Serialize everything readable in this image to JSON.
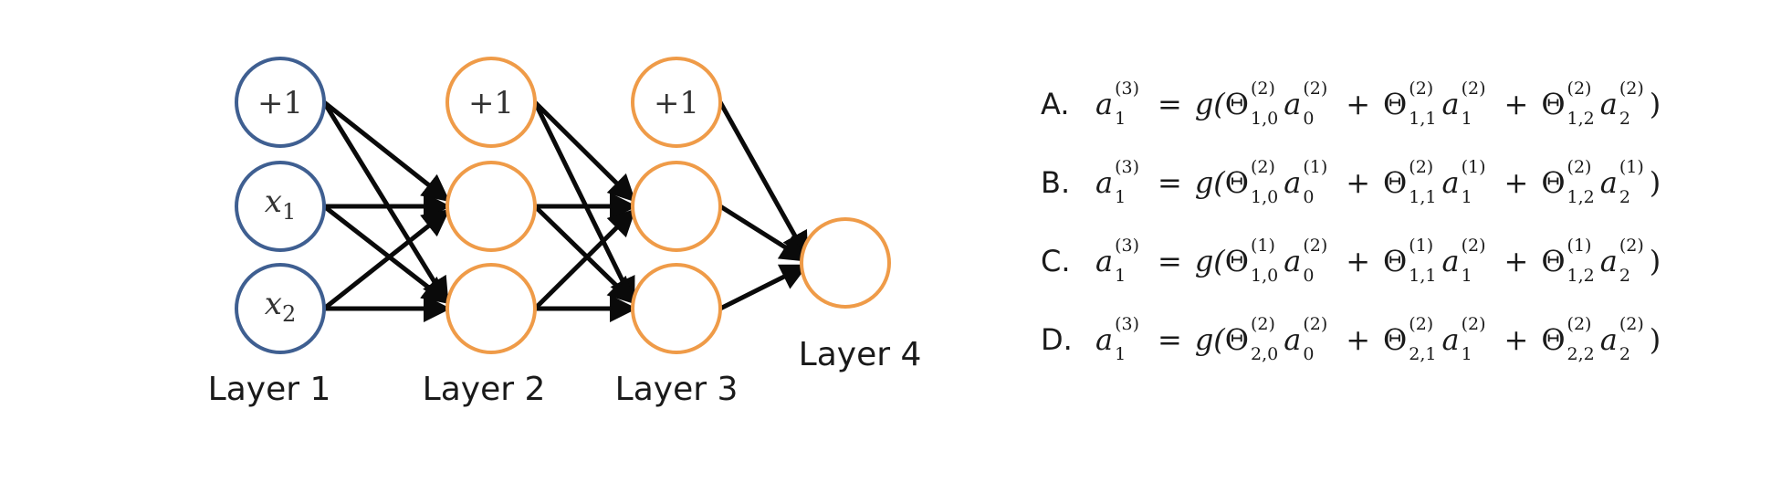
{
  "network": {
    "layers": [
      {
        "label": "Layer 1",
        "nodes": [
          "+1",
          "x1",
          "x2"
        ]
      },
      {
        "label": "Layer 2",
        "nodes": [
          "+1",
          "",
          ""
        ]
      },
      {
        "label": "Layer 3",
        "nodes": [
          "+1",
          "",
          ""
        ]
      },
      {
        "label": "Layer 4",
        "nodes": [
          ""
        ]
      }
    ],
    "colors": {
      "input": "#3f5f91",
      "hidden": "#ef9b48",
      "edge": "#0a0a0a"
    }
  },
  "options": [
    {
      "letter": "A.",
      "lhs": {
        "var": "a",
        "sub": "1",
        "sup": "(3)"
      },
      "eq": "=",
      "func": "g(",
      "close": ")",
      "plus": "+",
      "terms": [
        {
          "theta": "Θ",
          "theta_sup": "(2)",
          "theta_sub": "1,0",
          "var": "a",
          "var_sup": "(2)",
          "var_sub": "0"
        },
        {
          "theta": "Θ",
          "theta_sup": "(2)",
          "theta_sub": "1,1",
          "var": "a",
          "var_sup": "(2)",
          "var_sub": "1"
        },
        {
          "theta": "Θ",
          "theta_sup": "(2)",
          "theta_sub": "1,2",
          "var": "a",
          "var_sup": "(2)",
          "var_sub": "2"
        }
      ]
    },
    {
      "letter": "B.",
      "lhs": {
        "var": "a",
        "sub": "1",
        "sup": "(3)"
      },
      "eq": "=",
      "func": "g(",
      "close": ")",
      "plus": "+",
      "terms": [
        {
          "theta": "Θ",
          "theta_sup": "(2)",
          "theta_sub": "1,0",
          "var": "a",
          "var_sup": "(1)",
          "var_sub": "0"
        },
        {
          "theta": "Θ",
          "theta_sup": "(2)",
          "theta_sub": "1,1",
          "var": "a",
          "var_sup": "(1)",
          "var_sub": "1"
        },
        {
          "theta": "Θ",
          "theta_sup": "(2)",
          "theta_sub": "1,2",
          "var": "a",
          "var_sup": "(1)",
          "var_sub": "2"
        }
      ]
    },
    {
      "letter": "C.",
      "lhs": {
        "var": "a",
        "sub": "1",
        "sup": "(3)"
      },
      "eq": "=",
      "func": "g(",
      "close": ")",
      "plus": "+",
      "terms": [
        {
          "theta": "Θ",
          "theta_sup": "(1)",
          "theta_sub": "1,0",
          "var": "a",
          "var_sup": "(2)",
          "var_sub": "0"
        },
        {
          "theta": "Θ",
          "theta_sup": "(1)",
          "theta_sub": "1,1",
          "var": "a",
          "var_sup": "(2)",
          "var_sub": "1"
        },
        {
          "theta": "Θ",
          "theta_sup": "(1)",
          "theta_sub": "1,2",
          "var": "a",
          "var_sup": "(2)",
          "var_sub": "2"
        }
      ]
    },
    {
      "letter": "D.",
      "lhs": {
        "var": "a",
        "sub": "1",
        "sup": "(3)"
      },
      "eq": "=",
      "func": "g(",
      "close": ")",
      "plus": "+",
      "terms": [
        {
          "theta": "Θ",
          "theta_sup": "(2)",
          "theta_sub": "2,0",
          "var": "a",
          "var_sup": "(2)",
          "var_sub": "0"
        },
        {
          "theta": "Θ",
          "theta_sup": "(2)",
          "theta_sub": "2,1",
          "var": "a",
          "var_sup": "(2)",
          "var_sub": "1"
        },
        {
          "theta": "Θ",
          "theta_sup": "(2)",
          "theta_sub": "2,2",
          "var": "a",
          "var_sup": "(2)",
          "var_sub": "2"
        }
      ]
    }
  ]
}
